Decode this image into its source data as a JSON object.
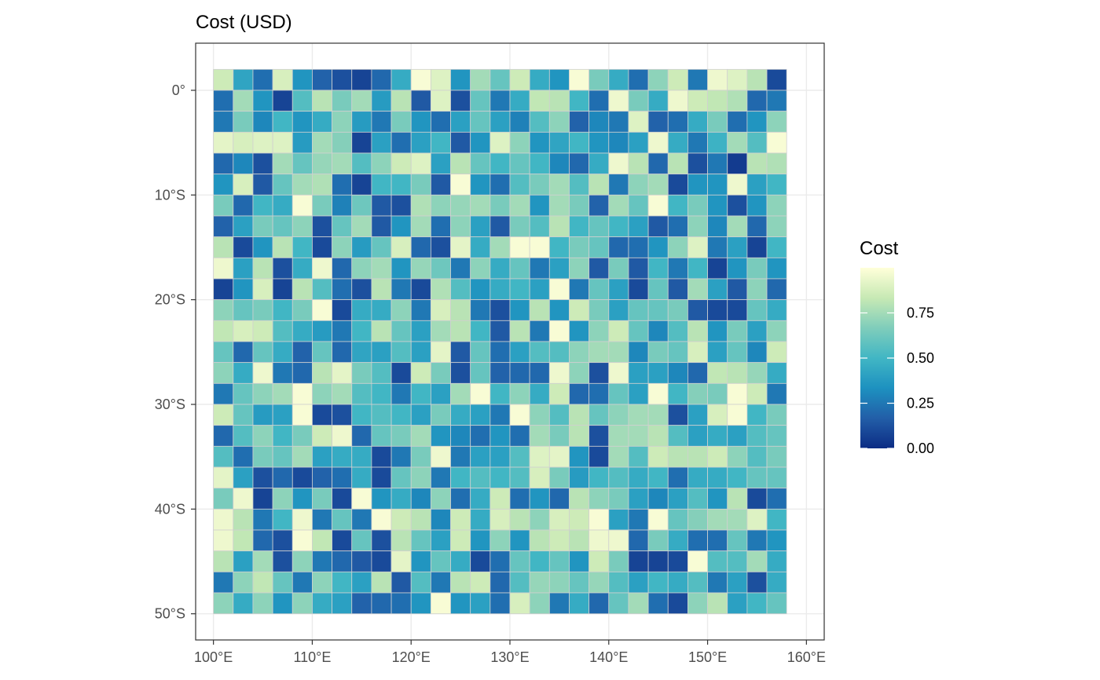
{
  "chart_data": {
    "type": "heatmap",
    "title": "Cost (USD)",
    "xlabel": "",
    "ylabel": "",
    "x_unit": "degrees longitude (east positive)",
    "y_unit": "degrees latitude (north positive)",
    "x_ticks": [
      100,
      110,
      120,
      130,
      140,
      150,
      160
    ],
    "x_tick_labels": [
      "100°E",
      "110°E",
      "120°E",
      "130°E",
      "140°E",
      "150°E",
      "160°E"
    ],
    "y_ticks": [
      0,
      -10,
      -20,
      -30,
      -40,
      -50
    ],
    "y_tick_labels": [
      "0°",
      "10°S",
      "20°S",
      "30°S",
      "40°S",
      "50°S"
    ],
    "xlim": [
      98.2,
      161.8
    ],
    "ylim": [
      -52.5,
      4.5
    ],
    "grid": true,
    "cell_x_first_center": 101,
    "cell_y_first_center": 1,
    "cell_size": 2,
    "legend": {
      "title": "Cost",
      "position": "right",
      "ticks": [
        0.0,
        0.25,
        0.5,
        0.75
      ],
      "tick_labels": [
        "0.00",
        "0.25",
        "0.50",
        "0.75"
      ],
      "range": [
        0,
        1
      ],
      "colors": [
        "#0c2c84",
        "#225ea8",
        "#1d91c0",
        "#41b6c4",
        "#7fcdbb",
        "#c7e9b4",
        "#ffffd9"
      ]
    },
    "values": [
      [
        0.85,
        0.42,
        0.22,
        0.88,
        0.35,
        0.18,
        0.12,
        0.08,
        0.2,
        0.45,
        0.98,
        0.9,
        0.35,
        0.75,
        0.6,
        0.85,
        0.45,
        0.35,
        0.98,
        0.65,
        0.45,
        0.22,
        0.7,
        0.85,
        0.25,
        0.95,
        0.9,
        0.8,
        0.1
      ],
      [
        0.22,
        0.75,
        0.35,
        0.08,
        0.55,
        0.8,
        0.65,
        0.75,
        0.38,
        0.8,
        0.15,
        0.9,
        0.12,
        0.6,
        0.25,
        0.45,
        0.82,
        0.8,
        0.5,
        0.22,
        0.95,
        0.65,
        0.45,
        0.95,
        0.85,
        0.82,
        0.78,
        0.2,
        0.25
      ],
      [
        0.25,
        0.65,
        0.3,
        0.5,
        0.35,
        0.45,
        0.7,
        0.38,
        0.25,
        0.65,
        0.35,
        0.22,
        0.4,
        0.6,
        0.4,
        0.28,
        0.55,
        0.7,
        0.18,
        0.3,
        0.25,
        0.9,
        0.18,
        0.22,
        0.45,
        0.65,
        0.22,
        0.35,
        0.7
      ],
      [
        0.92,
        0.88,
        0.9,
        0.9,
        0.38,
        0.75,
        0.68,
        0.08,
        0.4,
        0.22,
        0.4,
        0.5,
        0.15,
        0.35,
        0.9,
        0.7,
        0.35,
        0.42,
        0.5,
        0.35,
        0.3,
        0.4,
        0.95,
        0.45,
        0.25,
        0.48,
        0.75,
        0.55,
        0.98
      ],
      [
        0.2,
        0.3,
        0.12,
        0.75,
        0.6,
        0.72,
        0.75,
        0.55,
        0.7,
        0.85,
        0.9,
        0.4,
        0.8,
        0.6,
        0.5,
        0.6,
        0.5,
        0.3,
        0.2,
        0.45,
        0.95,
        0.8,
        0.2,
        0.8,
        0.12,
        0.25,
        0.05,
        0.8,
        0.78
      ],
      [
        0.35,
        0.88,
        0.15,
        0.6,
        0.75,
        0.78,
        0.22,
        0.08,
        0.5,
        0.5,
        0.65,
        0.15,
        0.98,
        0.35,
        0.22,
        0.55,
        0.65,
        0.75,
        0.55,
        0.8,
        0.25,
        0.7,
        0.75,
        0.1,
        0.35,
        0.35,
        0.95,
        0.4,
        0.5
      ],
      [
        0.65,
        0.2,
        0.5,
        0.45,
        0.98,
        0.65,
        0.28,
        0.62,
        0.15,
        0.12,
        0.78,
        0.7,
        0.72,
        0.75,
        0.65,
        0.75,
        0.35,
        0.75,
        0.65,
        0.18,
        0.75,
        0.6,
        0.98,
        0.5,
        0.65,
        0.35,
        0.12,
        0.35,
        0.7
      ],
      [
        0.18,
        0.4,
        0.65,
        0.6,
        0.7,
        0.12,
        0.6,
        0.75,
        0.15,
        0.35,
        0.75,
        0.22,
        0.7,
        0.4,
        0.15,
        0.65,
        0.55,
        0.8,
        0.5,
        0.6,
        0.5,
        0.4,
        0.15,
        0.22,
        0.7,
        0.3,
        0.75,
        0.2,
        0.7
      ],
      [
        0.8,
        0.1,
        0.35,
        0.8,
        0.5,
        0.1,
        0.7,
        0.38,
        0.6,
        0.88,
        0.2,
        0.12,
        0.92,
        0.45,
        0.75,
        0.98,
        0.98,
        0.5,
        0.65,
        0.6,
        0.2,
        0.22,
        0.35,
        0.7,
        0.9,
        0.25,
        0.4,
        0.08,
        0.5
      ],
      [
        0.95,
        0.4,
        0.8,
        0.12,
        0.45,
        0.95,
        0.2,
        0.7,
        0.75,
        0.35,
        0.72,
        0.62,
        0.25,
        0.7,
        0.45,
        0.6,
        0.25,
        0.4,
        0.7,
        0.15,
        0.65,
        0.15,
        0.5,
        0.25,
        0.5,
        0.08,
        0.35,
        0.65,
        0.35
      ],
      [
        0.08,
        0.35,
        0.88,
        0.08,
        0.8,
        0.55,
        0.22,
        0.12,
        0.8,
        0.25,
        0.1,
        0.78,
        0.55,
        0.35,
        0.45,
        0.5,
        0.4,
        0.98,
        0.25,
        0.6,
        0.4,
        0.1,
        0.6,
        0.15,
        0.75,
        0.4,
        0.15,
        0.7,
        0.2
      ],
      [
        0.7,
        0.6,
        0.65,
        0.5,
        0.65,
        0.98,
        0.1,
        0.45,
        0.45,
        0.7,
        0.25,
        0.88,
        0.8,
        0.25,
        0.12,
        0.35,
        0.8,
        0.35,
        0.85,
        0.65,
        0.4,
        0.6,
        0.6,
        0.65,
        0.15,
        0.1,
        0.1,
        0.6,
        0.45
      ],
      [
        0.82,
        0.88,
        0.85,
        0.55,
        0.45,
        0.38,
        0.25,
        0.5,
        0.8,
        0.6,
        0.4,
        0.75,
        0.8,
        0.5,
        0.15,
        0.8,
        0.25,
        0.98,
        0.35,
        0.7,
        0.85,
        0.6,
        0.3,
        0.55,
        0.8,
        0.35,
        0.65,
        0.4,
        0.7
      ],
      [
        0.6,
        0.2,
        0.6,
        0.45,
        0.18,
        0.6,
        0.2,
        0.42,
        0.4,
        0.55,
        0.4,
        0.92,
        0.15,
        0.6,
        0.22,
        0.4,
        0.55,
        0.55,
        0.7,
        0.75,
        0.75,
        0.3,
        0.65,
        0.6,
        0.88,
        0.4,
        0.6,
        0.3,
        0.85
      ],
      [
        0.7,
        0.45,
        0.95,
        0.25,
        0.2,
        0.8,
        0.92,
        0.65,
        0.55,
        0.1,
        0.85,
        0.65,
        0.12,
        0.6,
        0.18,
        0.2,
        0.2,
        0.95,
        0.7,
        0.12,
        0.95,
        0.4,
        0.4,
        0.3,
        0.2,
        0.82,
        0.8,
        0.72,
        0.45
      ],
      [
        0.25,
        0.6,
        0.7,
        0.75,
        0.98,
        0.7,
        0.75,
        0.55,
        0.5,
        0.25,
        0.5,
        0.4,
        0.75,
        0.98,
        0.5,
        0.7,
        0.45,
        0.85,
        0.2,
        0.22,
        0.6,
        0.4,
        0.98,
        0.5,
        0.68,
        0.65,
        0.98,
        0.85,
        0.25
      ],
      [
        0.85,
        0.6,
        0.38,
        0.4,
        0.98,
        0.1,
        0.12,
        0.5,
        0.55,
        0.5,
        0.4,
        0.65,
        0.45,
        0.4,
        0.25,
        0.98,
        0.7,
        0.55,
        0.8,
        0.6,
        0.7,
        0.75,
        0.75,
        0.12,
        0.4,
        0.88,
        0.98,
        0.5,
        0.65
      ],
      [
        0.2,
        0.55,
        0.7,
        0.5,
        0.65,
        0.85,
        0.95,
        0.2,
        0.6,
        0.65,
        0.75,
        0.35,
        0.3,
        0.22,
        0.35,
        0.22,
        0.75,
        0.65,
        0.8,
        0.12,
        0.75,
        0.75,
        0.8,
        0.55,
        0.4,
        0.45,
        0.4,
        0.55,
        0.6
      ],
      [
        0.55,
        0.22,
        0.65,
        0.6,
        0.75,
        0.4,
        0.45,
        0.45,
        0.1,
        0.25,
        0.65,
        0.95,
        0.25,
        0.4,
        0.4,
        0.55,
        0.9,
        0.92,
        0.35,
        0.1,
        0.75,
        0.55,
        0.85,
        0.8,
        0.8,
        0.85,
        0.7,
        0.55,
        0.65
      ],
      [
        0.92,
        0.4,
        0.12,
        0.2,
        0.1,
        0.18,
        0.22,
        0.45,
        0.1,
        0.6,
        0.7,
        0.25,
        0.5,
        0.55,
        0.5,
        0.55,
        0.88,
        0.65,
        0.38,
        0.5,
        0.55,
        0.45,
        0.5,
        0.22,
        0.45,
        0.45,
        0.5,
        0.6,
        0.6
      ],
      [
        0.65,
        0.95,
        0.08,
        0.7,
        0.35,
        0.65,
        0.1,
        0.98,
        0.35,
        0.45,
        0.3,
        0.7,
        0.22,
        0.45,
        0.85,
        0.22,
        0.35,
        0.2,
        0.8,
        0.7,
        0.65,
        0.4,
        0.3,
        0.4,
        0.55,
        0.35,
        0.8,
        0.1,
        0.22
      ],
      [
        0.95,
        0.8,
        0.25,
        0.5,
        0.95,
        0.25,
        0.6,
        0.25,
        0.98,
        0.85,
        0.8,
        0.3,
        0.85,
        0.45,
        0.88,
        0.8,
        0.7,
        0.88,
        0.85,
        0.98,
        0.4,
        0.25,
        0.98,
        0.6,
        0.68,
        0.75,
        0.75,
        0.9,
        0.5
      ],
      [
        0.95,
        0.82,
        0.2,
        0.12,
        0.98,
        0.82,
        0.1,
        0.6,
        0.12,
        0.8,
        0.6,
        0.4,
        0.85,
        0.35,
        0.7,
        0.35,
        0.8,
        0.85,
        0.8,
        0.95,
        0.95,
        0.2,
        0.65,
        0.45,
        0.22,
        0.22,
        0.6,
        0.25,
        0.35
      ],
      [
        0.8,
        0.4,
        0.75,
        0.12,
        0.7,
        0.25,
        0.2,
        0.15,
        0.1,
        0.92,
        0.35,
        0.6,
        0.45,
        0.1,
        0.22,
        0.6,
        0.5,
        0.6,
        0.35,
        0.85,
        0.65,
        0.08,
        0.08,
        0.1,
        0.98,
        0.55,
        0.55,
        0.75,
        0.45
      ],
      [
        0.25,
        0.7,
        0.82,
        0.6,
        0.25,
        0.7,
        0.5,
        0.4,
        0.8,
        0.15,
        0.55,
        0.25,
        0.8,
        0.85,
        0.2,
        0.55,
        0.72,
        0.7,
        0.6,
        0.72,
        0.55,
        0.4,
        0.5,
        0.45,
        0.55,
        0.25,
        0.4,
        0.12,
        0.45
      ],
      [
        0.7,
        0.45,
        0.7,
        0.35,
        0.7,
        0.45,
        0.4,
        0.18,
        0.2,
        0.22,
        0.35,
        0.98,
        0.35,
        0.4,
        0.22,
        0.88,
        0.7,
        0.25,
        0.45,
        0.2,
        0.6,
        0.75,
        0.22,
        0.1,
        0.7,
        0.8,
        0.4,
        0.5,
        0.6
      ]
    ]
  }
}
